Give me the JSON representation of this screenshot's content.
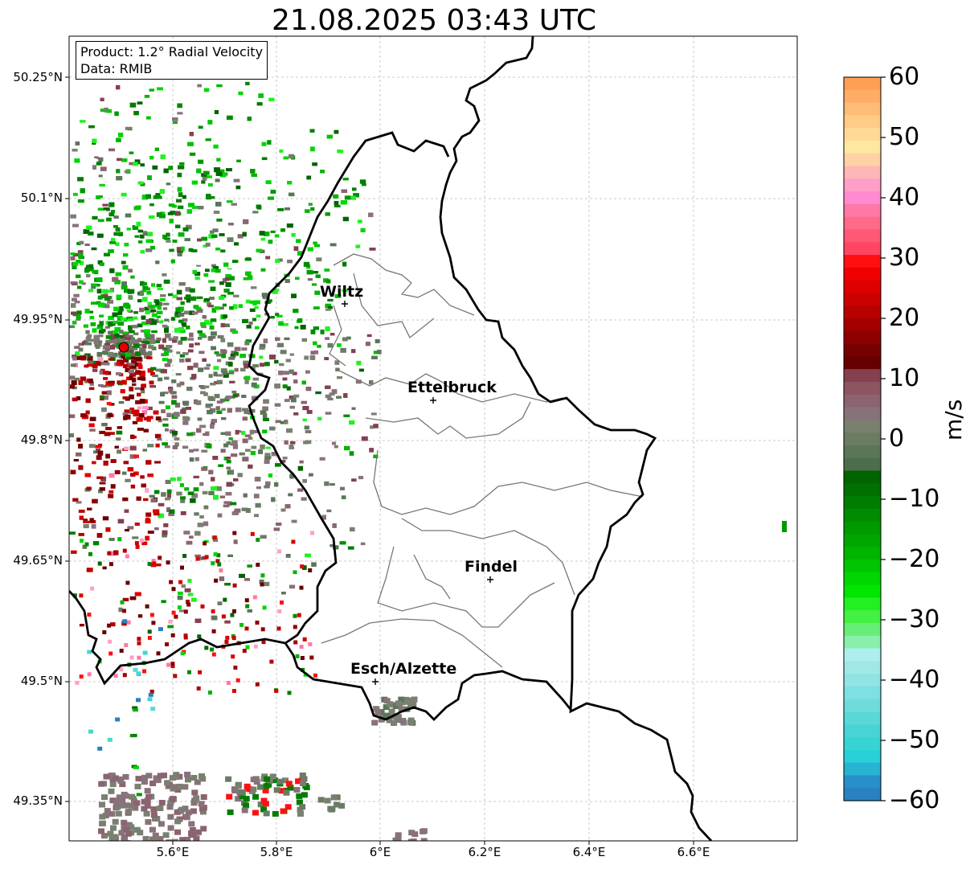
{
  "title": "21.08.2025 03:43 UTC",
  "info": {
    "product": "Product: 1.2° Radial Velocity",
    "data_source": "Data: RMIB"
  },
  "lat_ticks": [
    "50.25°N",
    "50.1°N",
    "49.95°N",
    "49.8°N",
    "49.65°N",
    "49.5°N",
    "49.35°N"
  ],
  "lon_ticks": [
    "5.6°E",
    "5.8°E",
    "6°E",
    "6.2°E",
    "6.4°E",
    "6.6°E"
  ],
  "colorbar": {
    "unit": "m/s",
    "ticks": [
      "60",
      "50",
      "40",
      "30",
      "20",
      "10",
      "0",
      "−10",
      "−20",
      "−30",
      "−40",
      "−50",
      "−60"
    ],
    "colors_top_to_bottom": [
      "#ff9e55",
      "#ffad66",
      "#ffbc77",
      "#ffcc88",
      "#ffd995",
      "#ffe7a0",
      "#ffd2a5",
      "#ffb6b6",
      "#ff9ec8",
      "#ff8ad0",
      "#ff78a8",
      "#ff6a88",
      "#ff5876",
      "#ff4562",
      "#ff1010",
      "#f00000",
      "#de0000",
      "#cc0000",
      "#b80000",
      "#a30000",
      "#8c0000",
      "#770000",
      "#660000",
      "#844050",
      "#8c5560",
      "#8a6470",
      "#88727a",
      "#7a8070",
      "#6a7c64",
      "#5a7658",
      "#4d6e4d",
      "#006400",
      "#007000",
      "#007d00",
      "#008b00",
      "#009900",
      "#00a600",
      "#00b400",
      "#00c500",
      "#00d600",
      "#00e600",
      "#22f022",
      "#44f044",
      "#66ee77",
      "#88f0aa",
      "#aeeeee",
      "#a0e8e8",
      "#90e4e4",
      "#7ee0e0",
      "#6edcdc",
      "#5ad8d8",
      "#48d4d4",
      "#38d4d4",
      "#28d0d8",
      "#28b4d0",
      "#2890c8",
      "#2a80c0"
    ]
  },
  "cities": [
    {
      "name": "Wiltz"
    },
    {
      "name": "Ettelbruck"
    },
    {
      "name": "Findel"
    },
    {
      "name": "Esch/Alzette"
    }
  ]
}
